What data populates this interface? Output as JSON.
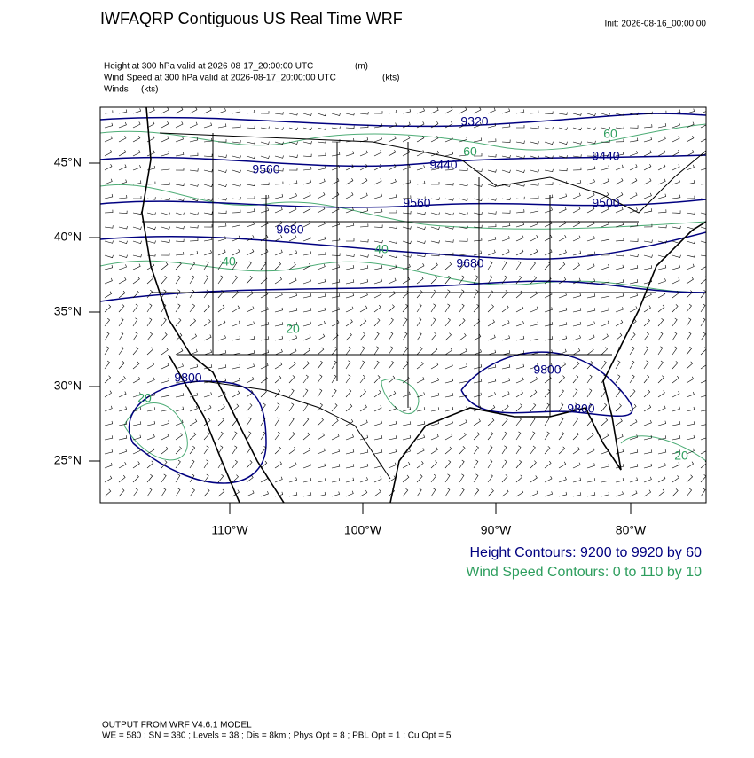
{
  "header": {
    "title": "IWFAQRP Contiguous US Real Time WRF",
    "init": "Init: 2026-08-16_00:00:00",
    "fields": [
      {
        "label": "Height at 300 hPa valid at 2026-08-17_20:00:00 UTC",
        "unit": "(m)"
      },
      {
        "label": "Wind Speed at 300 hPa valid at 2026-08-17_20:00:00 UTC",
        "unit": "(kts)"
      },
      {
        "label": "Winds",
        "unit": "(kts)"
      }
    ]
  },
  "map": {
    "lat_labels": [
      "45°N",
      "40°N",
      "35°N",
      "30°N",
      "25°N"
    ],
    "lon_labels": [
      "110°W",
      "100°W",
      "90°W",
      "80°W"
    ],
    "height_contour_labels": [
      "9320",
      "9560",
      "9440",
      "9440",
      "9560",
      "9500",
      "9680",
      "9680",
      "9800",
      "9800",
      "9800"
    ],
    "wind_contour_labels": [
      "60",
      "60",
      "40",
      "40",
      "20",
      "20",
      "20"
    ]
  },
  "legend": {
    "height": "Height Contours: 9200 to 9920 by 60",
    "wind": "Wind Speed Contours: 0 to 110 by 10"
  },
  "footer": {
    "model": "OUTPUT FROM WRF V4.6.1 MODEL",
    "settings": "WE = 580 ; SN = 380 ; Levels = 38 ; Dis = 8km ; Phys Opt = 8 ; PBL Opt = 1 ; Cu Opt = 5"
  }
}
